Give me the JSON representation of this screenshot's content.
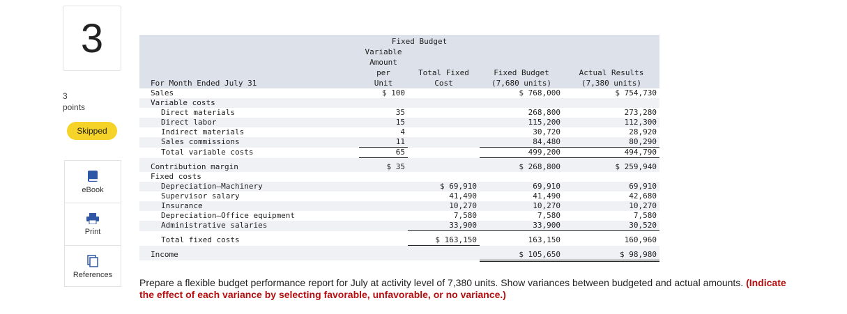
{
  "sidebar": {
    "question_number": "3",
    "points_value": "3",
    "points_label": "points",
    "status": "Skipped",
    "tools": [
      "eBook",
      "Print",
      "References"
    ]
  },
  "table": {
    "header": {
      "label": "For Month Ended July 31",
      "group": "Fixed Budget",
      "per_unit": [
        "Variable",
        "Amount per",
        "Unit"
      ],
      "total_fixed": [
        "Total Fixed",
        "Cost"
      ],
      "fixed_budget": [
        "Fixed Budget",
        "(7,680 units)"
      ],
      "actual_results": [
        "Actual Results",
        "(7,380 units)"
      ]
    },
    "rows": [
      {
        "label": "Sales",
        "per_unit": "$ 100",
        "fixed_budget": "$ 768,000",
        "actual_results": "$ 754,730"
      },
      {
        "label": "Variable costs"
      },
      {
        "label": "Direct materials",
        "per_unit": "35",
        "fixed_budget": "268,800",
        "actual_results": "273,280"
      },
      {
        "label": "Direct labor",
        "per_unit": "15",
        "fixed_budget": "115,200",
        "actual_results": "112,300"
      },
      {
        "label": "Indirect materials",
        "per_unit": "4",
        "fixed_budget": "30,720",
        "actual_results": "28,920"
      },
      {
        "label": "Sales commissions",
        "per_unit": "11",
        "fixed_budget": "84,480",
        "actual_results": "80,290"
      },
      {
        "label": "Total variable costs",
        "per_unit": "65",
        "fixed_budget": "499,200",
        "actual_results": "494,790"
      },
      {
        "label": "Contribution margin",
        "per_unit": "$ 35",
        "fixed_budget": "$ 268,800",
        "actual_results": "$ 259,940"
      },
      {
        "label": "Fixed costs"
      },
      {
        "label": "Depreciation—Machinery",
        "total_fixed": "$ 69,910",
        "fixed_budget": "69,910",
        "actual_results": "69,910"
      },
      {
        "label": "Supervisor salary",
        "total_fixed": "41,490",
        "fixed_budget": "41,490",
        "actual_results": "42,680"
      },
      {
        "label": "Insurance",
        "total_fixed": "10,270",
        "fixed_budget": "10,270",
        "actual_results": "10,270"
      },
      {
        "label": "Depreciation—Office equipment",
        "total_fixed": "7,580",
        "fixed_budget": "7,580",
        "actual_results": "7,580"
      },
      {
        "label": "Administrative salaries",
        "total_fixed": "33,900",
        "fixed_budget": "33,900",
        "actual_results": "30,520"
      },
      {
        "label": "Total fixed costs",
        "total_fixed": "$ 163,150",
        "fixed_budget": "163,150",
        "actual_results": "160,960"
      },
      {
        "label": "Income",
        "fixed_budget": "$ 105,650",
        "actual_results": "$ 98,980"
      }
    ]
  },
  "instructions": {
    "text": "Prepare a flexible budget performance report for July at activity level of 7,380 units. Show variances between budgeted and actual amounts.",
    "emphasis": "(Indicate the effect of each variance by selecting favorable, unfavorable, or no variance.)"
  }
}
